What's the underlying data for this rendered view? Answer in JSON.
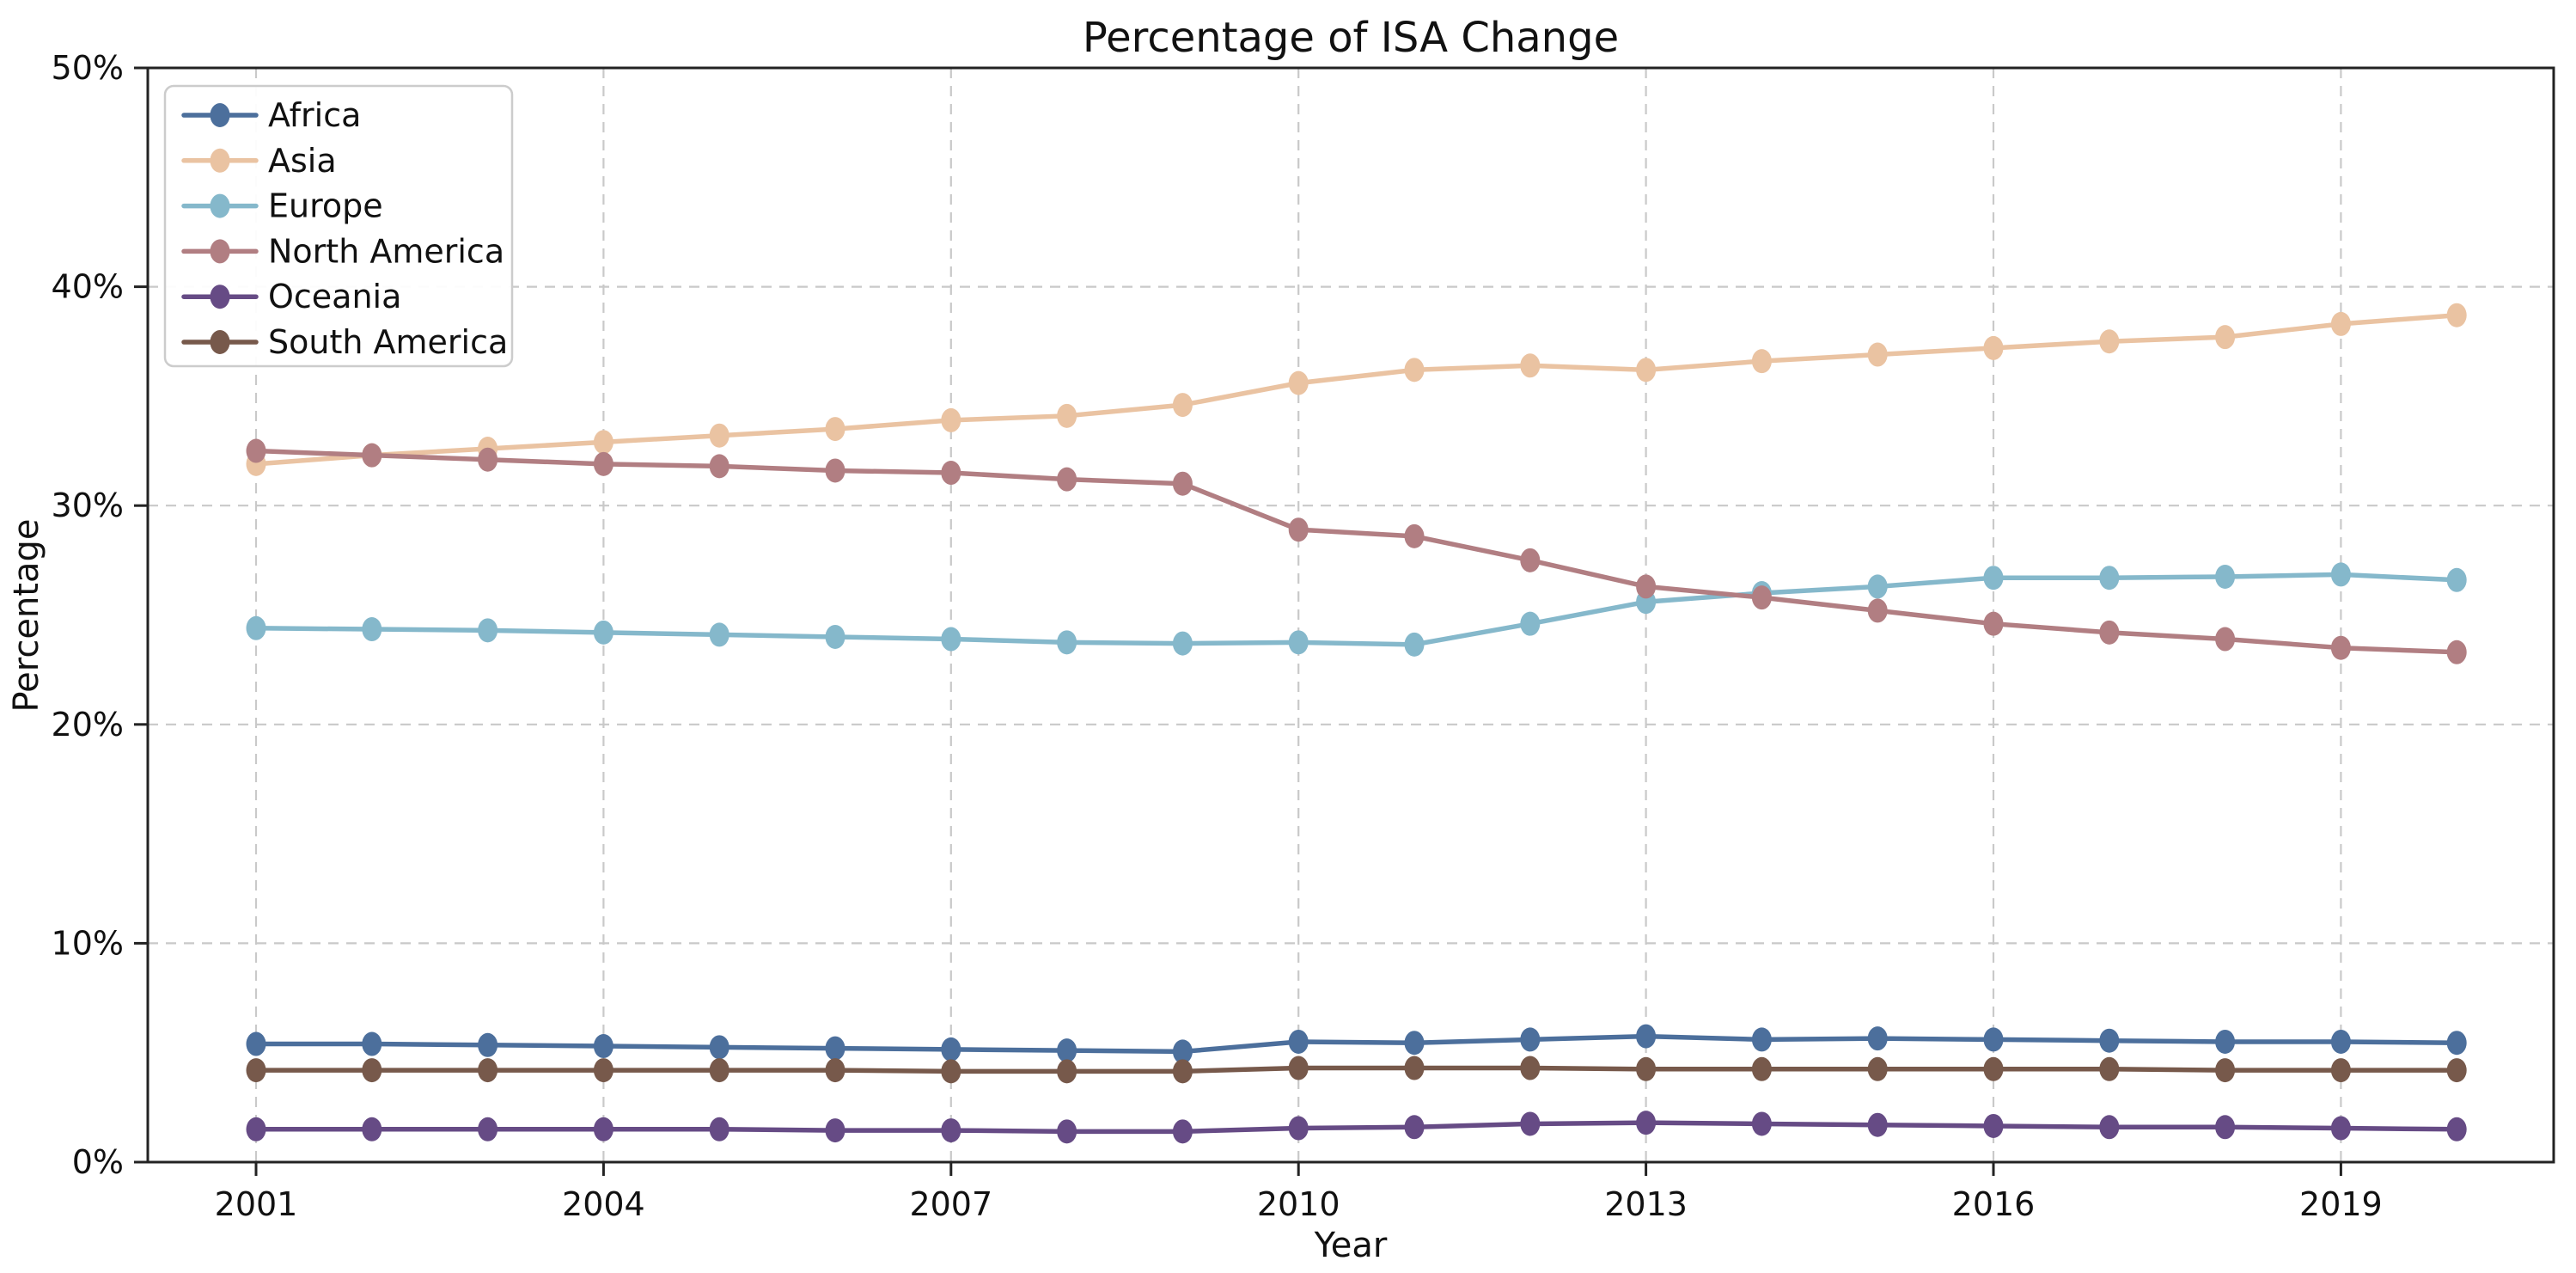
{
  "figure": {
    "title": "Percentage of ISA Change",
    "xlabel": "Year",
    "ylabel": "Percentage"
  },
  "chart_data": {
    "type": "line",
    "title": "Percentage of ISA Change",
    "xlabel": "Year",
    "ylabel": "Percentage",
    "x": [
      2001,
      2002,
      2003,
      2004,
      2005,
      2006,
      2007,
      2008,
      2009,
      2010,
      2011,
      2012,
      2013,
      2014,
      2015,
      2016,
      2017,
      2018,
      2019,
      2020
    ],
    "series": [
      {
        "name": "Africa",
        "color": "#4c6f9c",
        "values": [
          5.4,
          5.4,
          5.35,
          5.3,
          5.25,
          5.2,
          5.15,
          5.1,
          5.05,
          5.5,
          5.45,
          5.6,
          5.75,
          5.6,
          5.65,
          5.6,
          5.55,
          5.5,
          5.5,
          5.45
        ]
      },
      {
        "name": "Asia",
        "color": "#eac3a2",
        "values": [
          31.9,
          32.3,
          32.6,
          32.9,
          33.2,
          33.5,
          33.9,
          34.1,
          34.6,
          35.6,
          36.2,
          36.4,
          36.2,
          36.6,
          36.9,
          37.2,
          37.5,
          37.7,
          38.3,
          38.7
        ]
      },
      {
        "name": "Europe",
        "color": "#85b8cb",
        "values": [
          24.4,
          24.35,
          24.3,
          24.2,
          24.1,
          24.0,
          23.9,
          23.75,
          23.7,
          23.75,
          23.65,
          24.6,
          25.6,
          26.0,
          26.3,
          26.7,
          26.7,
          26.75,
          26.85,
          26.6
        ]
      },
      {
        "name": "North America",
        "color": "#b17e82",
        "values": [
          32.5,
          32.3,
          32.1,
          31.9,
          31.8,
          31.6,
          31.5,
          31.2,
          31.0,
          28.9,
          28.6,
          27.5,
          26.3,
          25.8,
          25.2,
          24.6,
          24.2,
          23.9,
          23.5,
          23.3
        ]
      },
      {
        "name": "Oceania",
        "color": "#664b85",
        "values": [
          1.5,
          1.5,
          1.5,
          1.5,
          1.5,
          1.45,
          1.45,
          1.4,
          1.4,
          1.55,
          1.6,
          1.75,
          1.8,
          1.75,
          1.7,
          1.65,
          1.6,
          1.6,
          1.55,
          1.5
        ]
      },
      {
        "name": "South America",
        "color": "#77594b",
        "values": [
          4.2,
          4.2,
          4.2,
          4.2,
          4.2,
          4.2,
          4.15,
          4.15,
          4.15,
          4.3,
          4.3,
          4.3,
          4.25,
          4.25,
          4.25,
          4.25,
          4.25,
          4.2,
          4.2,
          4.2
        ]
      }
    ],
    "ylim": [
      0,
      50
    ],
    "yticks": [
      0,
      10,
      20,
      30,
      40,
      50
    ],
    "ytick_labels": [
      "0%",
      "10%",
      "20%",
      "30%",
      "40%",
      "50%"
    ],
    "xticks": [
      2001,
      2004,
      2007,
      2010,
      2013,
      2016,
      2019
    ],
    "grid": "dashed both axes",
    "legend_position": "upper-left",
    "colors": {
      "grid": "#c9c9c9",
      "spine": "#232323",
      "text": "#111111",
      "legend_border": "#cccccc",
      "background": "#ffffff"
    }
  }
}
